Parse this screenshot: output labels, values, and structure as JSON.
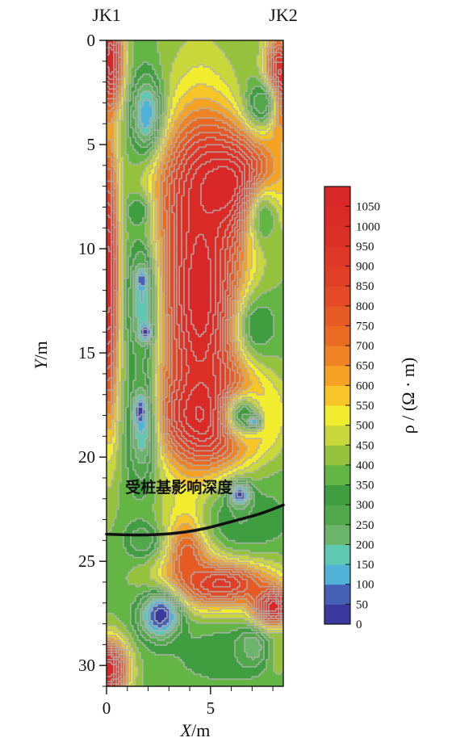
{
  "chart_data": {
    "type": "heatmap",
    "title": "",
    "xlabel_italic": "X",
    "xlabel_unit": "/m",
    "ylabel_italic": "Y",
    "ylabel_unit": "/m",
    "xlim": [
      0,
      8.5
    ],
    "ylim": [
      0,
      31
    ],
    "y_inverted": true,
    "x_ticks": [
      0,
      5
    ],
    "y_ticks": [
      0,
      5,
      10,
      15,
      20,
      25,
      30
    ],
    "boreholes": [
      {
        "label": "JK1",
        "x": 0
      },
      {
        "label": "JK2",
        "x": 8.5
      }
    ],
    "colorbar": {
      "label": "ρ / (Ω · m)",
      "ticks": [
        0,
        50,
        100,
        150,
        200,
        250,
        300,
        350,
        400,
        450,
        500,
        550,
        600,
        650,
        700,
        750,
        800,
        850,
        900,
        950,
        1000,
        1050
      ],
      "range": [
        0,
        1100
      ],
      "colors": [
        "#3a3a9e",
        "#4560b5",
        "#4fb3d8",
        "#5ec9b0",
        "#6ab56a",
        "#50a84a",
        "#3f9e3f",
        "#63b544",
        "#95c23c",
        "#c8d83a",
        "#f2ec2f",
        "#f7c528",
        "#f5a123",
        "#ef8222",
        "#ea6a22",
        "#e65a24",
        "#e34a25",
        "#e03f26",
        "#de3627",
        "#dc3027",
        "#db2b27",
        "#da2727"
      ],
      "contour_color": "#b0b0b0"
    },
    "annotation": {
      "text": "受桩基影响深度",
      "x": 0.9,
      "y": 21.7
    },
    "influence_curve": [
      [
        0,
        23.7
      ],
      [
        1.5,
        23.75
      ],
      [
        3.0,
        23.7
      ],
      [
        4.5,
        23.5
      ],
      [
        6.0,
        23.1
      ],
      [
        7.5,
        22.7
      ],
      [
        8.5,
        22.3
      ]
    ],
    "field_features": [
      {
        "value": 1100,
        "x": 0.2,
        "y": 1.0,
        "sx": 0.6,
        "sy": 2.2
      },
      {
        "value": 20,
        "x": 2.0,
        "y": 3.7,
        "sx": 0.75,
        "sy": 1.9
      },
      {
        "value": 1100,
        "x": 4.5,
        "y": 12.0,
        "sx": 2.0,
        "sy": 8.0
      },
      {
        "value": 1100,
        "x": 5.8,
        "y": 7.0,
        "sx": 2.5,
        "sy": 2.6
      },
      {
        "value": 1100,
        "x": 5.2,
        "y": 18.0,
        "sx": 2.5,
        "sy": 2.0
      },
      {
        "value": 1100,
        "x": 0.1,
        "y": 11.5,
        "sx": 0.5,
        "sy": 6.5
      },
      {
        "value": 1100,
        "x": 0.1,
        "y": 30.2,
        "sx": 0.9,
        "sy": 1.4
      },
      {
        "value": 1100,
        "x": 8.3,
        "y": 2.0,
        "sx": 0.7,
        "sy": 2.2
      },
      {
        "value": 950,
        "x": 5.5,
        "y": 26.0,
        "sx": 2.5,
        "sy": 1.2
      },
      {
        "value": 1100,
        "x": 8.0,
        "y": 27.2,
        "sx": 0.9,
        "sy": 0.9
      },
      {
        "value": 850,
        "x": 4.0,
        "y": 24.5,
        "sx": 1.0,
        "sy": 1.8
      },
      {
        "value": 350,
        "x": 7.6,
        "y": 8.6,
        "sx": 0.9,
        "sy": 1.8
      },
      {
        "value": 300,
        "x": 7.3,
        "y": 13.7,
        "sx": 1.0,
        "sy": 1.6
      },
      {
        "value": 300,
        "x": 6.6,
        "y": 18.0,
        "sx": 1.1,
        "sy": 1.3
      },
      {
        "value": 100,
        "x": 7.1,
        "y": 18.3,
        "sx": 0.3,
        "sy": 0.3
      },
      {
        "value": 250,
        "x": 7.5,
        "y": 3.0,
        "sx": 0.8,
        "sy": 1.2
      },
      {
        "value": 300,
        "x": 6.5,
        "y": 23.0,
        "sx": 2.2,
        "sy": 1.8
      },
      {
        "value": 30,
        "x": 6.4,
        "y": 21.8,
        "sx": 0.5,
        "sy": 0.55
      },
      {
        "value": 150,
        "x": 1.7,
        "y": 12.5,
        "sx": 0.7,
        "sy": 3.0
      },
      {
        "value": 150,
        "x": 1.7,
        "y": 18.5,
        "sx": 0.7,
        "sy": 2.8
      },
      {
        "value": 20,
        "x": 1.9,
        "y": 14.0,
        "sx": 0.3,
        "sy": 0.4
      },
      {
        "value": 20,
        "x": 1.6,
        "y": 17.8,
        "sx": 0.25,
        "sy": 0.6
      },
      {
        "value": 50,
        "x": 1.7,
        "y": 11.5,
        "sx": 0.25,
        "sy": 0.4
      },
      {
        "value": 300,
        "x": 1.5,
        "y": 8.2,
        "sx": 0.6,
        "sy": 0.8
      },
      {
        "value": 250,
        "x": 1.7,
        "y": 24.0,
        "sx": 0.8,
        "sy": 0.8
      },
      {
        "value": 10,
        "x": 2.6,
        "y": 27.6,
        "sx": 1.0,
        "sy": 1.15
      },
      {
        "value": 100,
        "x": 6.9,
        "y": 29.2,
        "sx": 0.7,
        "sy": 0.8
      },
      {
        "value": 450,
        "x": 8.2,
        "y": 29.6,
        "sx": 0.4,
        "sy": 0.9
      },
      {
        "value": 300,
        "x": 5.5,
        "y": 29.5,
        "sx": 2.0,
        "sy": 1.2
      }
    ]
  }
}
